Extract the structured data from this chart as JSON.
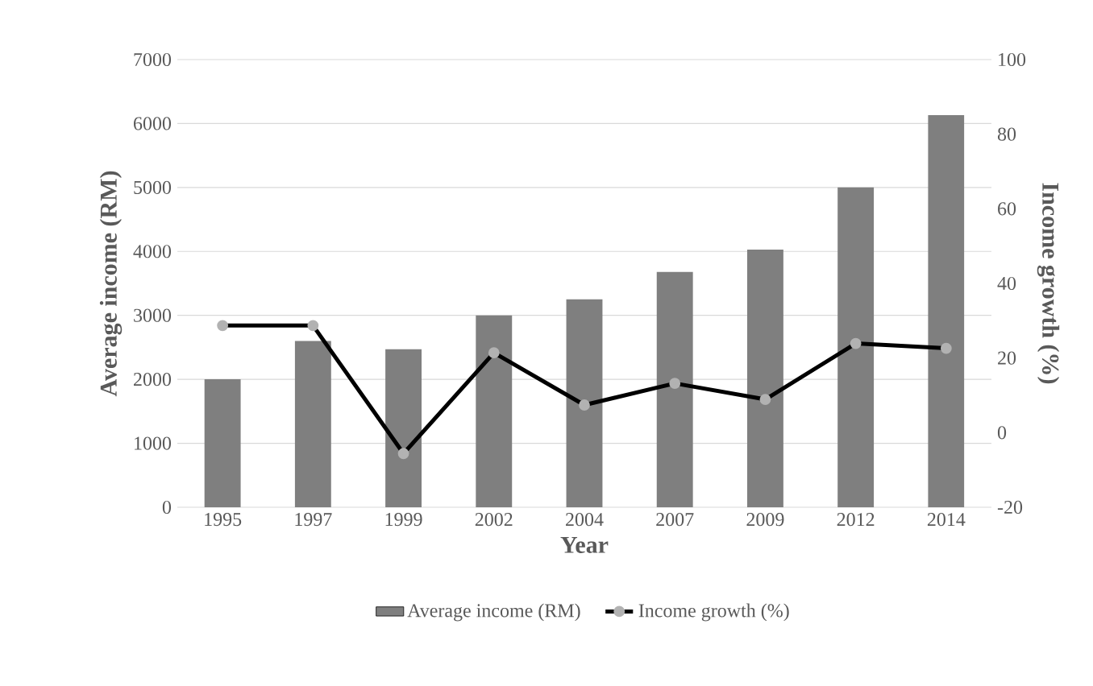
{
  "chart_data": {
    "type": "bar",
    "xlabel": "Year",
    "ylabel": "Average income (RM)",
    "y2label": "Income growth (%)",
    "categories": [
      "1995",
      "1997",
      "1999",
      "2002",
      "2004",
      "2007",
      "2009",
      "2012",
      "2014"
    ],
    "series": [
      {
        "name": "Average income (RM)",
        "color": "#7f7f7f",
        "values": [
          2000,
          2600,
          2470,
          3000,
          3250,
          3680,
          4030,
          5000,
          6130
        ]
      },
      {
        "name": "Income growth (%)",
        "type": "line",
        "axis": "y2",
        "color": "#000000",
        "marker": "circle",
        "values": [
          28.7,
          28.7,
          -5.6,
          21.4,
          7.4,
          13.2,
          8.9,
          23.9,
          22.6
        ]
      }
    ],
    "ylim": [
      0,
      7000
    ],
    "yticks": [
      0,
      1000,
      2000,
      3000,
      4000,
      5000,
      6000,
      7000
    ],
    "y2lim": [
      -20,
      100
    ],
    "y2ticks": [
      -20,
      0,
      20,
      40,
      60,
      80,
      100
    ],
    "grid": "y",
    "legend": "bottom"
  }
}
